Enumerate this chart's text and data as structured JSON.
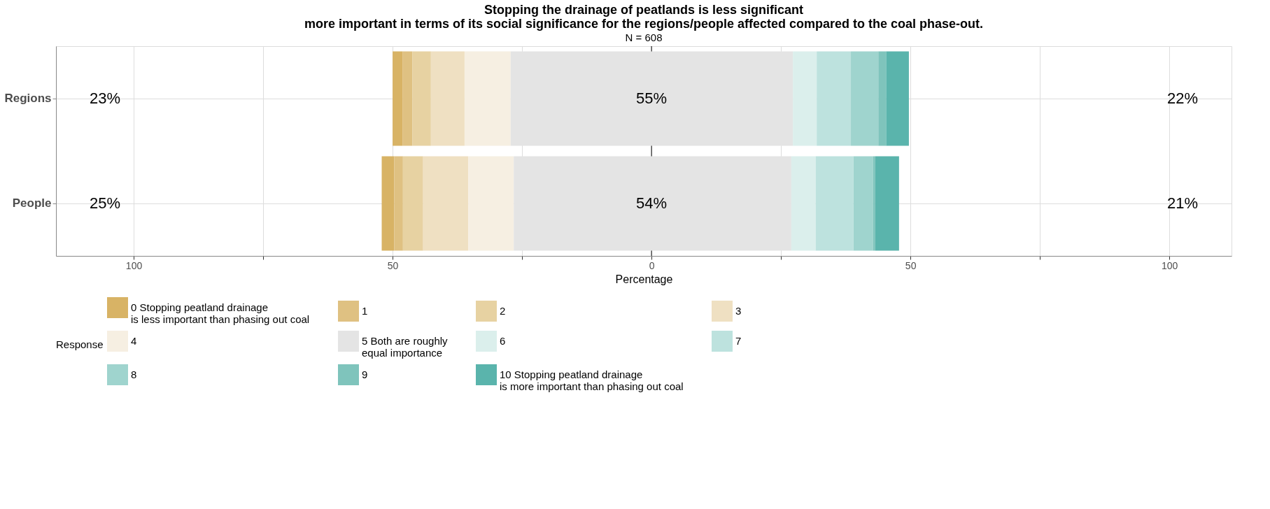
{
  "chart_data": {
    "type": "bar",
    "orientation": "horizontal",
    "title": [
      "Stopping the drainage of peatlands is less significant",
      "more important in terms of its social significance for the regions/people affected compared to the coal phase-out."
    ],
    "subtitle": "N = 608",
    "xlabel": "Percentage",
    "legend_title": "Response",
    "legend": "bottom",
    "grid": true,
    "categories": [
      "Regions",
      "People"
    ],
    "series": [
      {
        "name": "0 Stopping peatland drainage\n is less important than phasing out coal",
        "color": "#d8b365",
        "base": [
          -50.0,
          -52.1
        ],
        "values": [
          1.9,
          2.4
        ]
      },
      {
        "name": "1",
        "color": "#dfc182",
        "base": [
          -48.1,
          -49.7
        ],
        "values": [
          1.9,
          1.7
        ]
      },
      {
        "name": "2",
        "color": "#e7d2a2",
        "base": [
          -46.2,
          -48.0
        ],
        "values": [
          3.6,
          3.9
        ]
      },
      {
        "name": "3",
        "color": "#efe0c2",
        "base": [
          -42.6,
          -44.1
        ],
        "values": [
          6.5,
          8.7
        ]
      },
      {
        "name": "4",
        "color": "#f6efe2",
        "base": [
          -36.1,
          -35.4
        ],
        "values": [
          8.9,
          8.8
        ]
      },
      {
        "name": "5 Both are roughly\n equal importance",
        "color": "#e4e4e4",
        "base": [
          -27.2,
          -26.6
        ],
        "values": [
          54.5,
          53.6
        ]
      },
      {
        "name": "6",
        "color": "#dbefec",
        "base": [
          27.3,
          27.0
        ],
        "values": [
          4.6,
          4.7
        ]
      },
      {
        "name": "7",
        "color": "#bde2de",
        "base": [
          31.9,
          31.7
        ],
        "values": [
          6.6,
          7.3
        ]
      },
      {
        "name": "8",
        "color": "#9fd4ce",
        "base": [
          38.5,
          39.0
        ],
        "values": [
          5.3,
          3.8
        ]
      },
      {
        "name": "9",
        "color": "#7fc4bc",
        "base": [
          43.8,
          42.8
        ],
        "values": [
          1.5,
          0.4
        ]
      },
      {
        "name": "10 Stopping peatland drainage\n is more important than phasing out coal",
        "color": "#5ab4ac",
        "base": [
          45.3,
          43.2
        ],
        "values": [
          4.4,
          4.6
        ]
      }
    ],
    "xlim": [
      -115,
      112
    ],
    "xticks": [
      {
        "value": -100,
        "label": "100"
      },
      {
        "value": -75,
        "label": null
      },
      {
        "value": -50,
        "label": "50"
      },
      {
        "value": -25,
        "label": null
      },
      0,
      {
        "value": 25,
        "label": null
      },
      50,
      {
        "value": 75,
        "label": null
      },
      100
    ],
    "ref_lines": [
      {
        "axis": "x",
        "value": 0,
        "color": "#000000"
      }
    ],
    "annotations": [
      "23%",
      "22%",
      "25%",
      "21%",
      {
        "text": "55%",
        "x": 0,
        "y": "Regions"
      },
      {
        "text": "54%",
        "x": 0,
        "y": "People"
      }
    ]
  }
}
